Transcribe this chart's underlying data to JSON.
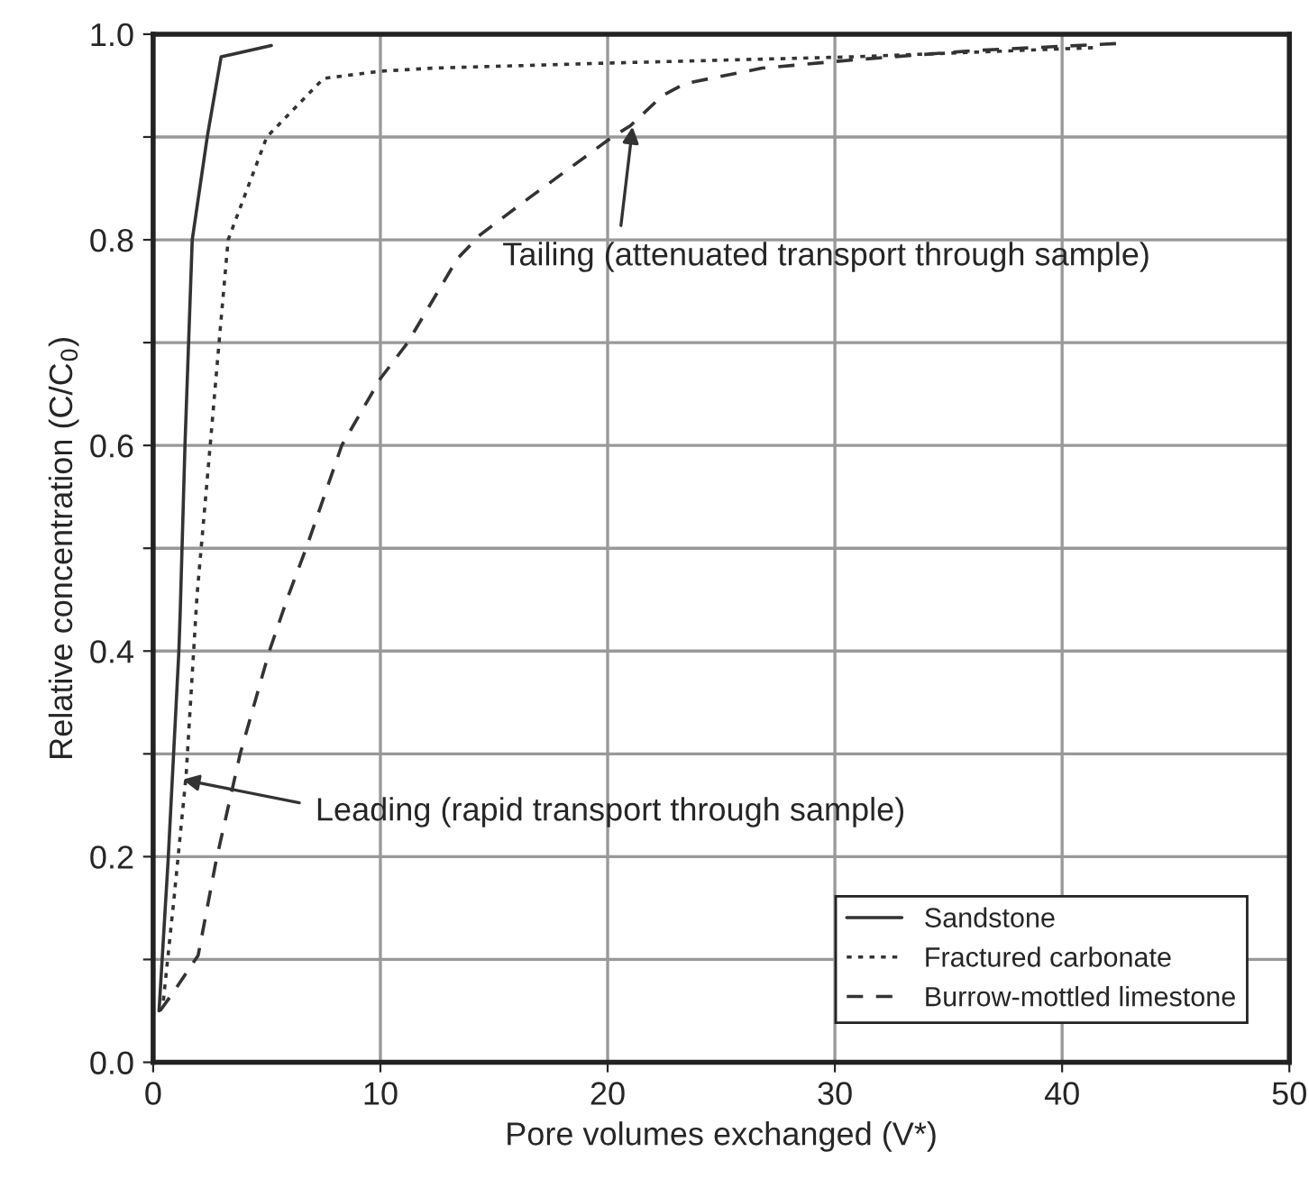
{
  "chart_data": {
    "type": "line",
    "xlabel": "Pore volumes exchanged (V*)",
    "ylabel": "Relative concentration (C/C$_{0}$)",
    "xlim": [
      0,
      50
    ],
    "ylim": [
      0,
      1.0
    ],
    "xticks": [
      0,
      10,
      20,
      30,
      40,
      50
    ],
    "yticks": [
      {
        "value": 0,
        "label": "0.0"
      },
      {
        "value": 0.1,
        "label": null
      },
      {
        "value": 0.2,
        "label": "0.2"
      },
      {
        "value": 0.3,
        "label": null
      },
      {
        "value": 0.4,
        "label": "0.4"
      },
      {
        "value": 0.5,
        "label": null
      },
      {
        "value": 0.6,
        "label": "0.6"
      },
      {
        "value": 0.7,
        "label": null
      },
      {
        "value": 0.8,
        "label": "0.8"
      },
      {
        "value": 0.9,
        "label": null
      },
      {
        "value": 1.0,
        "label": "1.0"
      }
    ],
    "grid": true,
    "legend": "bottom right",
    "series": [
      {
        "name": "Sandstone",
        "color": "#333333",
        "line_style": "solid",
        "x": [
          0.26,
          0.66,
          1.13,
          1.19,
          1.4,
          1.72,
          2.38,
          2.99,
          5.2
        ],
        "values": [
          0.05,
          0.197,
          0.399,
          0.437,
          0.6,
          0.8,
          0.9,
          0.978,
          0.989
        ]
      },
      {
        "name": "Fractured carbonate",
        "color": "#333333",
        "line_style": "dotted",
        "x": [
          0.45,
          0.93,
          1.45,
          1.93,
          2.51,
          2.9,
          3.3,
          5.0,
          7.5,
          10,
          12.3,
          20.2,
          30.8,
          41.5
        ],
        "values": [
          0.06,
          0.162,
          0.279,
          0.454,
          0.6,
          0.7,
          0.8,
          0.9,
          0.957,
          0.964,
          0.967,
          0.972,
          0.978,
          0.987
        ]
      },
      {
        "name": "Burrow-mottled limestone",
        "color": "#333333",
        "line_style": "dashed",
        "x": [
          0.3,
          0.79,
          1.98,
          2.78,
          3.83,
          5.1,
          5.95,
          6.75,
          8.3,
          10,
          11.2,
          13.4,
          14.4,
          16.5,
          20.2,
          21,
          22.4,
          23.4,
          26.8,
          30.8,
          36.1,
          42.5
        ],
        "values": [
          0.05,
          0.065,
          0.104,
          0.197,
          0.3,
          0.399,
          0.454,
          0.501,
          0.6,
          0.665,
          0.7,
          0.782,
          0.805,
          0.84,
          0.9,
          0.911,
          0.94,
          0.952,
          0.967,
          0.975,
          0.984,
          0.991
        ]
      }
    ],
    "annotations": [
      {
        "text": "Leading (rapid transport through sample)",
        "x": 1.3,
        "y": 0.275
      },
      {
        "text": "Tailing (attenuated transport through sample)",
        "x": 21.1,
        "y": 0.91
      }
    ]
  }
}
